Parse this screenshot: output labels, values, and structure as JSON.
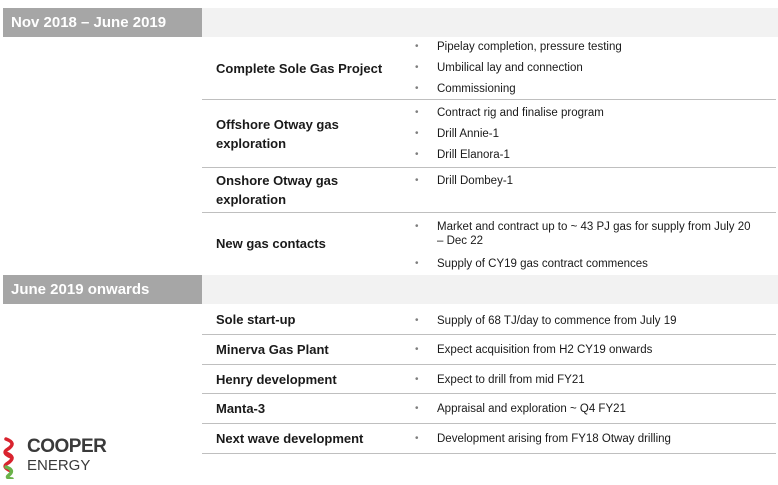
{
  "sections": [
    {
      "title": "Nov 2018 – June 2019",
      "rows": [
        {
          "label": "Complete Sole Gas Project",
          "bullets": [
            "Pipelay completion, pressure testing",
            "Umbilical lay and connection",
            "Commissioning"
          ]
        },
        {
          "label": "Offshore Otway gas exploration",
          "bullets": [
            "Contract rig and finalise program",
            "Drill Annie-1",
            "Drill Elanora-1"
          ]
        },
        {
          "label": "Onshore Otway gas exploration",
          "bullets": [
            "Drill Dombey-1"
          ]
        },
        {
          "label": "New gas contacts",
          "bullets": [
            "Market and contract up to ~ 43 PJ gas for supply from  July 20 – Dec 22",
            "Supply of CY19 gas contract commences"
          ]
        }
      ]
    },
    {
      "title": "June 2019 onwards",
      "rows": [
        {
          "label": "Sole start-up",
          "bullets": [
            "Supply of 68 TJ/day to commence from July 19"
          ]
        },
        {
          "label": "Minerva Gas Plant",
          "bullets": [
            "Expect acquisition from H2 CY19 onwards"
          ]
        },
        {
          "label": "Henry development",
          "bullets": [
            "Expect to drill from mid FY21"
          ]
        },
        {
          "label": "Manta-3",
          "bullets": [
            "Appraisal and exploration ~ Q4 FY21"
          ]
        },
        {
          "label": "Next wave development",
          "bullets": [
            "Development arising from FY18 Otway drilling"
          ]
        }
      ]
    }
  ],
  "logo": {
    "line1": "COOPER",
    "line2": "ENERGY"
  },
  "colors": {
    "header_bg": "#a6a6a6",
    "divider": "#bfbfbf",
    "logo_red": "#d9232e",
    "logo_green": "#6bb24a"
  }
}
